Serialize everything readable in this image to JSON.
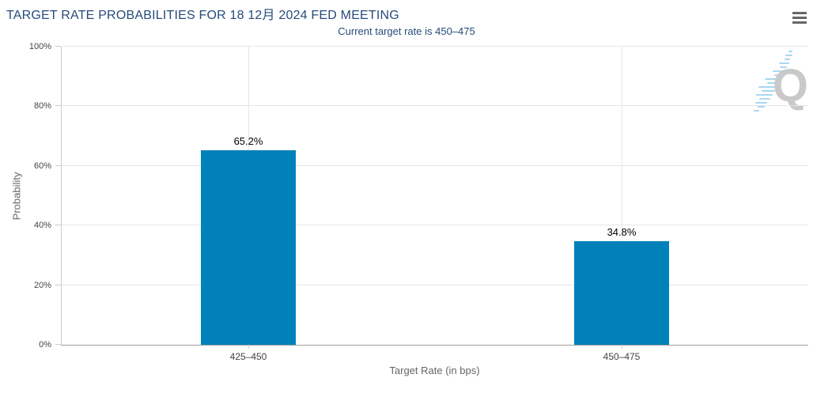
{
  "header": {
    "menu_icon": "hamburger-icon"
  },
  "watermark": {
    "letter": "Q"
  },
  "colors": {
    "bar": "#0081ba",
    "title_text": "#274b7a",
    "axis_label": "#444444",
    "axis_title": "#666666",
    "gridline": "#e6e6e6",
    "menu_icon": "#666666",
    "watermark_gray": "#c9c9c9",
    "watermark_blue": "#a9d7f0"
  },
  "chart_data": {
    "type": "bar",
    "title": "TARGET RATE PROBABILITIES FOR 18 12月 2024 FED MEETING",
    "subtitle": "Current target rate is 450–475",
    "categories": [
      "425–450",
      "450–475"
    ],
    "values": [
      65.2,
      34.8
    ],
    "value_labels": [
      "65.2%",
      "34.8%"
    ],
    "xlabel": "Target Rate (in bps)",
    "ylabel": "Probability",
    "ylim": [
      0,
      100
    ],
    "y_tick_values": [
      0,
      20,
      40,
      60,
      80,
      100
    ],
    "y_tick_labels": [
      "0%",
      "20%",
      "40%",
      "60%",
      "80%",
      "100%"
    ],
    "grid": true,
    "legend": false,
    "bar_color": "#0081ba"
  }
}
